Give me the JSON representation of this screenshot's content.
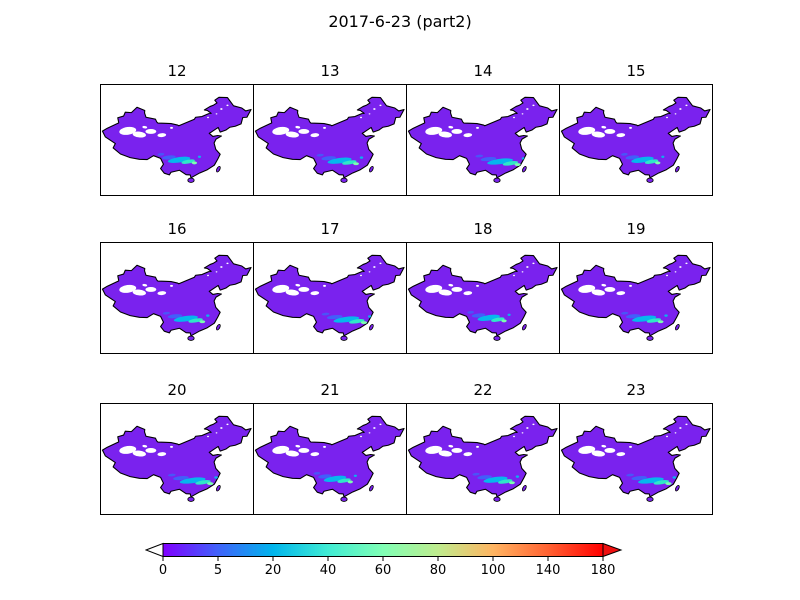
{
  "figure": {
    "title": "2017-6-23 (part2)",
    "background": "#ffffff"
  },
  "panels": [
    {
      "label": "12"
    },
    {
      "label": "13"
    },
    {
      "label": "14"
    },
    {
      "label": "15"
    },
    {
      "label": "16"
    },
    {
      "label": "17"
    },
    {
      "label": "18"
    },
    {
      "label": "19"
    },
    {
      "label": "20"
    },
    {
      "label": "21"
    },
    {
      "label": "22"
    },
    {
      "label": "23"
    }
  ],
  "colorbar": {
    "ticks": [
      "0",
      "5",
      "20",
      "40",
      "60",
      "80",
      "100",
      "140",
      "180"
    ],
    "segment_colors": [
      "#8000ff",
      "#4062fa",
      "#00b5ec",
      "#40ecd4",
      "#80ffb5",
      "#bfec8e",
      "#ffb562",
      "#ff6232",
      "#ff0000"
    ],
    "under_arrow_color": "#ffffff",
    "over_arrow_color": "#ee1010",
    "orientation": "horizontal"
  },
  "map_colors": {
    "base": "#7a22ee",
    "outline": "#000000",
    "nodata": "#ffffff",
    "rain_blue": "#3f62fa",
    "rain_cyan": "#00c0ec",
    "rain_teal": "#2fe8c8",
    "rain_green": "#7dffb0"
  },
  "chart_data": {
    "type": "heatmap",
    "title": "2017-6-23 (part2)",
    "layout": {
      "rows": 3,
      "cols": 4
    },
    "panel_labels": [
      "12",
      "13",
      "14",
      "15",
      "16",
      "17",
      "18",
      "19",
      "20",
      "21",
      "22",
      "23"
    ],
    "region": "China",
    "colorbar": {
      "levels": [
        0,
        5,
        20,
        40,
        60,
        80,
        100,
        140,
        180
      ],
      "orientation": "horizontal",
      "extend": "both",
      "colormap": "rainbow",
      "spacing": "uniform"
    },
    "value_summary": "Hourly gridded maps over China (hours 12-23). Most of the domain falls in the 0-5 bin (violet); scattered higher bins (20-100, shown blue to cyan to green) form streaks over south-central and southeastern China; white patches over the northwest interior are below range / no data.",
    "legend_position": "bottom",
    "grid": false
  }
}
